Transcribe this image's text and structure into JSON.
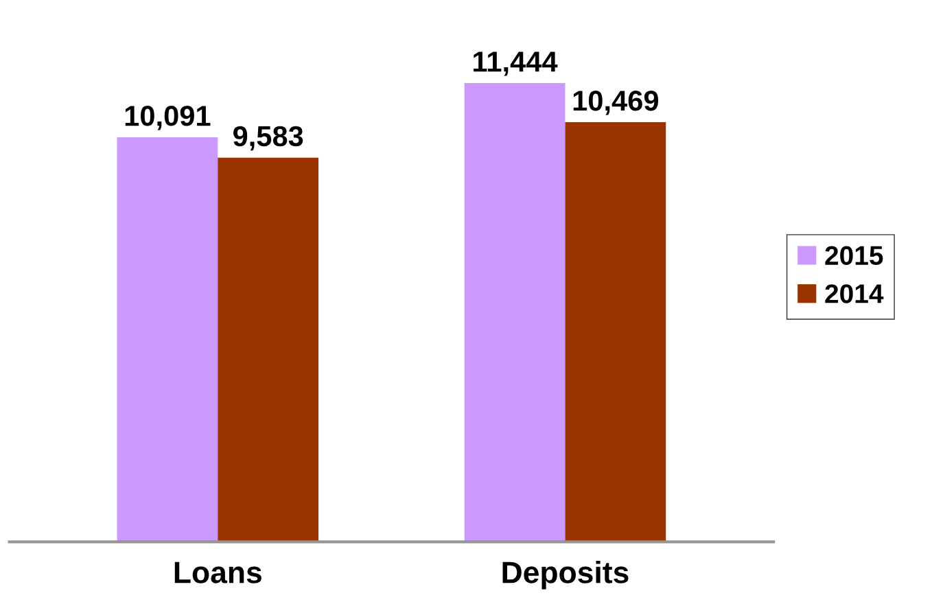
{
  "chart_data": {
    "type": "bar",
    "categories": [
      "Loans",
      "Deposits"
    ],
    "series": [
      {
        "name": "2015",
        "color": "#cc99ff",
        "values": [
          10091,
          11444
        ],
        "value_labels": [
          "10,091",
          "11,444"
        ]
      },
      {
        "name": "2014",
        "color": "#993300",
        "values": [
          9583,
          10469
        ],
        "value_labels": [
          "9,583",
          "10,469"
        ]
      }
    ],
    "legend": "right"
  }
}
